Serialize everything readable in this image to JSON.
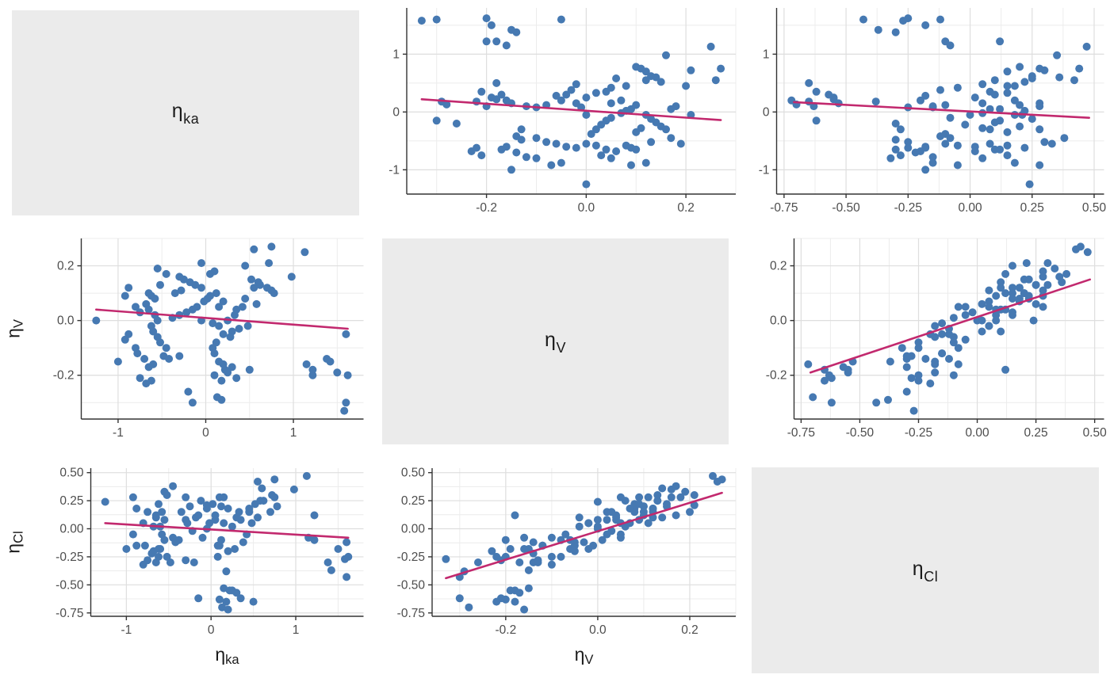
{
  "chart_data": {
    "type": "scatter",
    "subtype": "scatter-matrix",
    "title": "",
    "description": "3x3 pairs plot of inter-individual random effects (ETAs) with linear trend lines; diagonal shows variable labels",
    "legend": "none",
    "grid": "major and minor gridlines on white panels",
    "variables": {
      "ka": {
        "base": "η",
        "sub": "ka"
      },
      "V": {
        "base": "η",
        "sub": "V"
      },
      "Cl": {
        "base": "η",
        "sub": "Cl"
      }
    },
    "axes": {
      "ka": {
        "domain": [
          -1.42,
          1.8
        ],
        "major": [
          -1,
          0,
          1
        ],
        "labels": [
          "-1",
          "0",
          "1"
        ],
        "minor_step": 0.5
      },
      "V": {
        "domain": [
          -0.36,
          0.3
        ],
        "major": [
          -0.2,
          0.0,
          0.2
        ],
        "labels": [
          "-0.2",
          "0.0",
          "0.2"
        ],
        "minor_step": 0.1
      },
      "Cl": {
        "domain": [
          -0.78,
          0.54
        ],
        "major": [
          -0.75,
          -0.5,
          -0.25,
          0,
          0.25,
          0.5
        ],
        "labels": [
          "-0.75",
          "-0.50",
          "-0.25",
          "0.00",
          "0.25",
          "0.50"
        ],
        "minor_step": 0.125
      }
    },
    "points": {
      "vars": [
        "ka",
        "V",
        "Cl"
      ],
      "rows": [
        [
          1.6,
          -0.3,
          -0.43
        ],
        [
          1.62,
          -0.2,
          -0.25
        ],
        [
          1.5,
          -0.19,
          -0.18
        ],
        [
          1.42,
          -0.15,
          -0.37
        ],
        [
          1.38,
          -0.14,
          -0.3
        ],
        [
          1.22,
          -0.2,
          -0.1
        ],
        [
          1.22,
          -0.18,
          0.12
        ],
        [
          1.15,
          -0.16,
          -0.08
        ],
        [
          1.6,
          -0.05,
          -0.12
        ],
        [
          1.13,
          0.25,
          0.47
        ],
        [
          0.98,
          0.16,
          0.35
        ],
        [
          0.75,
          0.27,
          0.44
        ],
        [
          0.55,
          0.26,
          0.42
        ],
        [
          0.72,
          0.21,
          0.3
        ],
        [
          0.78,
          0.1,
          0.2
        ],
        [
          0.75,
          0.11,
          0.28
        ],
        [
          0.7,
          0.12,
          0.15
        ],
        [
          0.62,
          0.13,
          0.25
        ],
        [
          0.6,
          0.14,
          0.36
        ],
        [
          0.55,
          0.12,
          0.1
        ],
        [
          0.52,
          0.15,
          0.22
        ],
        [
          0.45,
          0.08,
          0.18
        ],
        [
          0.48,
          -0.02,
          0.05
        ],
        [
          0.5,
          -0.18,
          -0.65
        ],
        [
          0.35,
          0.04,
          0.08
        ],
        [
          0.42,
          0.05,
          -0.05
        ],
        [
          0.38,
          -0.03,
          -0.12
        ],
        [
          0.3,
          -0.04,
          0.1
        ],
        [
          0.28,
          -0.06,
          -0.18
        ],
        [
          0.25,
          0.0,
          0.02
        ],
        [
          0.33,
          0.02,
          0.15
        ],
        [
          0.58,
          0.06,
          0.25
        ],
        [
          0.1,
          0.18,
          0.28
        ],
        [
          0.05,
          0.17,
          0.12
        ],
        [
          0.12,
          0.1,
          0.2
        ],
        [
          0.05,
          0.09,
          0.08
        ],
        [
          0.02,
          0.08,
          0.22
        ],
        [
          -0.02,
          0.07,
          0.05
        ],
        [
          -0.05,
          0.12,
          0.18
        ],
        [
          -0.12,
          0.13,
          0.25
        ],
        [
          -0.18,
          0.14,
          0.1
        ],
        [
          -0.25,
          0.15,
          0.2
        ],
        [
          -0.3,
          0.16,
          0.28
        ],
        [
          -0.28,
          0.11,
          0.05
        ],
        [
          -0.35,
          0.1,
          0.15
        ],
        [
          -0.1,
          0.05,
          -0.08
        ],
        [
          -0.15,
          0.04,
          0.12
        ],
        [
          -0.22,
          0.03,
          -0.02
        ],
        [
          -0.3,
          0.02,
          0.08
        ],
        [
          -0.38,
          0.01,
          -0.1
        ],
        [
          -0.05,
          0.0,
          0.0
        ],
        [
          0.08,
          -0.01,
          -0.15
        ],
        [
          0.15,
          -0.02,
          0.05
        ],
        [
          0.2,
          -0.05,
          -0.2
        ],
        [
          0.12,
          -0.08,
          -0.1
        ],
        [
          0.08,
          -0.1,
          -0.25
        ],
        [
          0.1,
          -0.12,
          -0.15
        ],
        [
          0.15,
          -0.15,
          -0.53
        ],
        [
          0.22,
          -0.18,
          -0.55
        ],
        [
          0.1,
          -0.2,
          -0.63
        ],
        [
          0.18,
          -0.22,
          -0.65
        ],
        [
          0.13,
          -0.28,
          -0.7
        ],
        [
          -0.15,
          -0.3,
          -0.62
        ],
        [
          0.3,
          -0.17,
          -0.57
        ],
        [
          0.35,
          -0.21,
          -0.62
        ],
        [
          0.2,
          -0.16,
          -0.72
        ],
        [
          0.25,
          -0.19,
          -0.55
        ],
        [
          -0.3,
          -0.13,
          -0.28
        ],
        [
          -0.42,
          -0.14,
          -0.12
        ],
        [
          -0.48,
          -0.13,
          -0.3
        ],
        [
          -0.45,
          -0.1,
          -0.08
        ],
        [
          -0.52,
          -0.08,
          -0.25
        ],
        [
          -0.6,
          -0.16,
          -0.18
        ],
        [
          -0.65,
          -0.17,
          -0.3
        ],
        [
          -0.7,
          -0.14,
          -0.22
        ],
        [
          -0.78,
          -0.12,
          -0.15
        ],
        [
          -0.8,
          -0.1,
          -0.32
        ],
        [
          -0.55,
          -0.06,
          -0.1
        ],
        [
          -0.6,
          -0.04,
          0.02
        ],
        [
          -0.62,
          -0.02,
          -0.18
        ],
        [
          -0.55,
          0.0,
          0.08
        ],
        [
          -0.58,
          0.02,
          -0.05
        ],
        [
          -0.65,
          0.04,
          0.1
        ],
        [
          -0.68,
          0.06,
          0.02
        ],
        [
          -0.75,
          0.03,
          0.15
        ],
        [
          -0.8,
          0.05,
          0.05
        ],
        [
          -0.58,
          0.08,
          0.15
        ],
        [
          -0.62,
          0.09,
          0.22
        ],
        [
          -0.65,
          0.1,
          0.12
        ],
        [
          -0.88,
          0.12,
          0.18
        ],
        [
          -0.92,
          0.09,
          0.28
        ],
        [
          -0.88,
          -0.05,
          -0.15
        ],
        [
          -0.92,
          -0.07,
          -0.05
        ],
        [
          -1.0,
          -0.15,
          -0.18
        ],
        [
          -1.25,
          0.0,
          0.24
        ],
        [
          -0.52,
          0.13,
          0.3
        ],
        [
          -0.45,
          0.17,
          0.38
        ],
        [
          -0.55,
          0.19,
          0.33
        ],
        [
          -0.62,
          -0.22,
          -0.25
        ],
        [
          -0.68,
          -0.23,
          -0.2
        ],
        [
          -0.75,
          -0.21,
          -0.28
        ],
        [
          0.2,
          0.07,
          0.18
        ],
        [
          0.15,
          0.05,
          0.28
        ],
        [
          -0.05,
          0.21,
          0.21
        ],
        [
          0.45,
          0.2,
          0.15
        ],
        [
          -0.2,
          -0.26,
          -0.3
        ],
        [
          0.18,
          -0.29,
          -0.38
        ],
        [
          1.58,
          -0.33,
          -0.27
        ]
      ]
    },
    "panels": {
      "V_ka": {
        "x": "V",
        "y": "ka",
        "cell": [
          466,
          288
        ],
        "margins": {
          "l": 46,
          "t": 10,
          "r": 5,
          "b": 43
        },
        "x_title": false,
        "y_title": false,
        "trend": [
          [
            -0.33,
            0.22
          ],
          [
            0.27,
            -0.14
          ]
        ]
      },
      "Cl_ka": {
        "x": "Cl",
        "y": "ka",
        "cell": [
          466,
          288
        ],
        "margins": {
          "l": 46,
          "t": 10,
          "r": 7,
          "b": 43
        },
        "x_title": false,
        "y_title": false,
        "trend": [
          [
            -0.71,
            0.17
          ],
          [
            0.48,
            -0.1
          ]
        ]
      },
      "ka_V": {
        "x": "ka",
        "y": "V",
        "cell": [
          466,
          289
        ],
        "margins": {
          "l": 102,
          "t": 13,
          "r": 8,
          "b": 48
        },
        "x_title": false,
        "y_title": true,
        "trend": [
          [
            -1.25,
            0.04
          ],
          [
            1.62,
            -0.03
          ]
        ]
      },
      "Cl_V": {
        "x": "Cl",
        "y": "V",
        "cell": [
          466,
          289
        ],
        "margins": {
          "l": 68,
          "t": 13,
          "r": 7,
          "b": 48
        },
        "x_title": false,
        "y_title": false,
        "trend": [
          [
            -0.71,
            -0.19
          ],
          [
            0.48,
            0.15
          ]
        ]
      },
      "ka_Cl": {
        "x": "ka",
        "y": "Cl",
        "cell": [
          466,
          289
        ],
        "margins": {
          "l": 114,
          "t": 14,
          "r": 8,
          "b": 88
        },
        "x_title": true,
        "y_title": true,
        "trend": [
          [
            -1.25,
            0.05
          ],
          [
            1.62,
            -0.08
          ]
        ]
      },
      "V_Cl": {
        "x": "V",
        "y": "Cl",
        "cell": [
          466,
          289
        ],
        "margins": {
          "l": 78,
          "t": 14,
          "r": 5,
          "b": 88
        },
        "x_title": true,
        "y_title": false,
        "trend": [
          [
            -0.33,
            -0.44
          ],
          [
            0.27,
            0.32
          ]
        ]
      }
    },
    "style": {
      "point_color": "#4679B2",
      "point_radius": 5,
      "trend_color": "#C2296E",
      "trend_width": 2.6,
      "panel_label_bg": "#EBEBEB",
      "panel_bg": "#FFFFFF",
      "grid_major": "#DEDEDE",
      "grid_minor": "#ECECEC",
      "axis_line": "#333333",
      "tick_color": "#333333",
      "tick_text": "#4D4D4D",
      "title_text": "#1A1A1A",
      "tick_font_px": 15.5,
      "title_font_px": 23
    }
  }
}
